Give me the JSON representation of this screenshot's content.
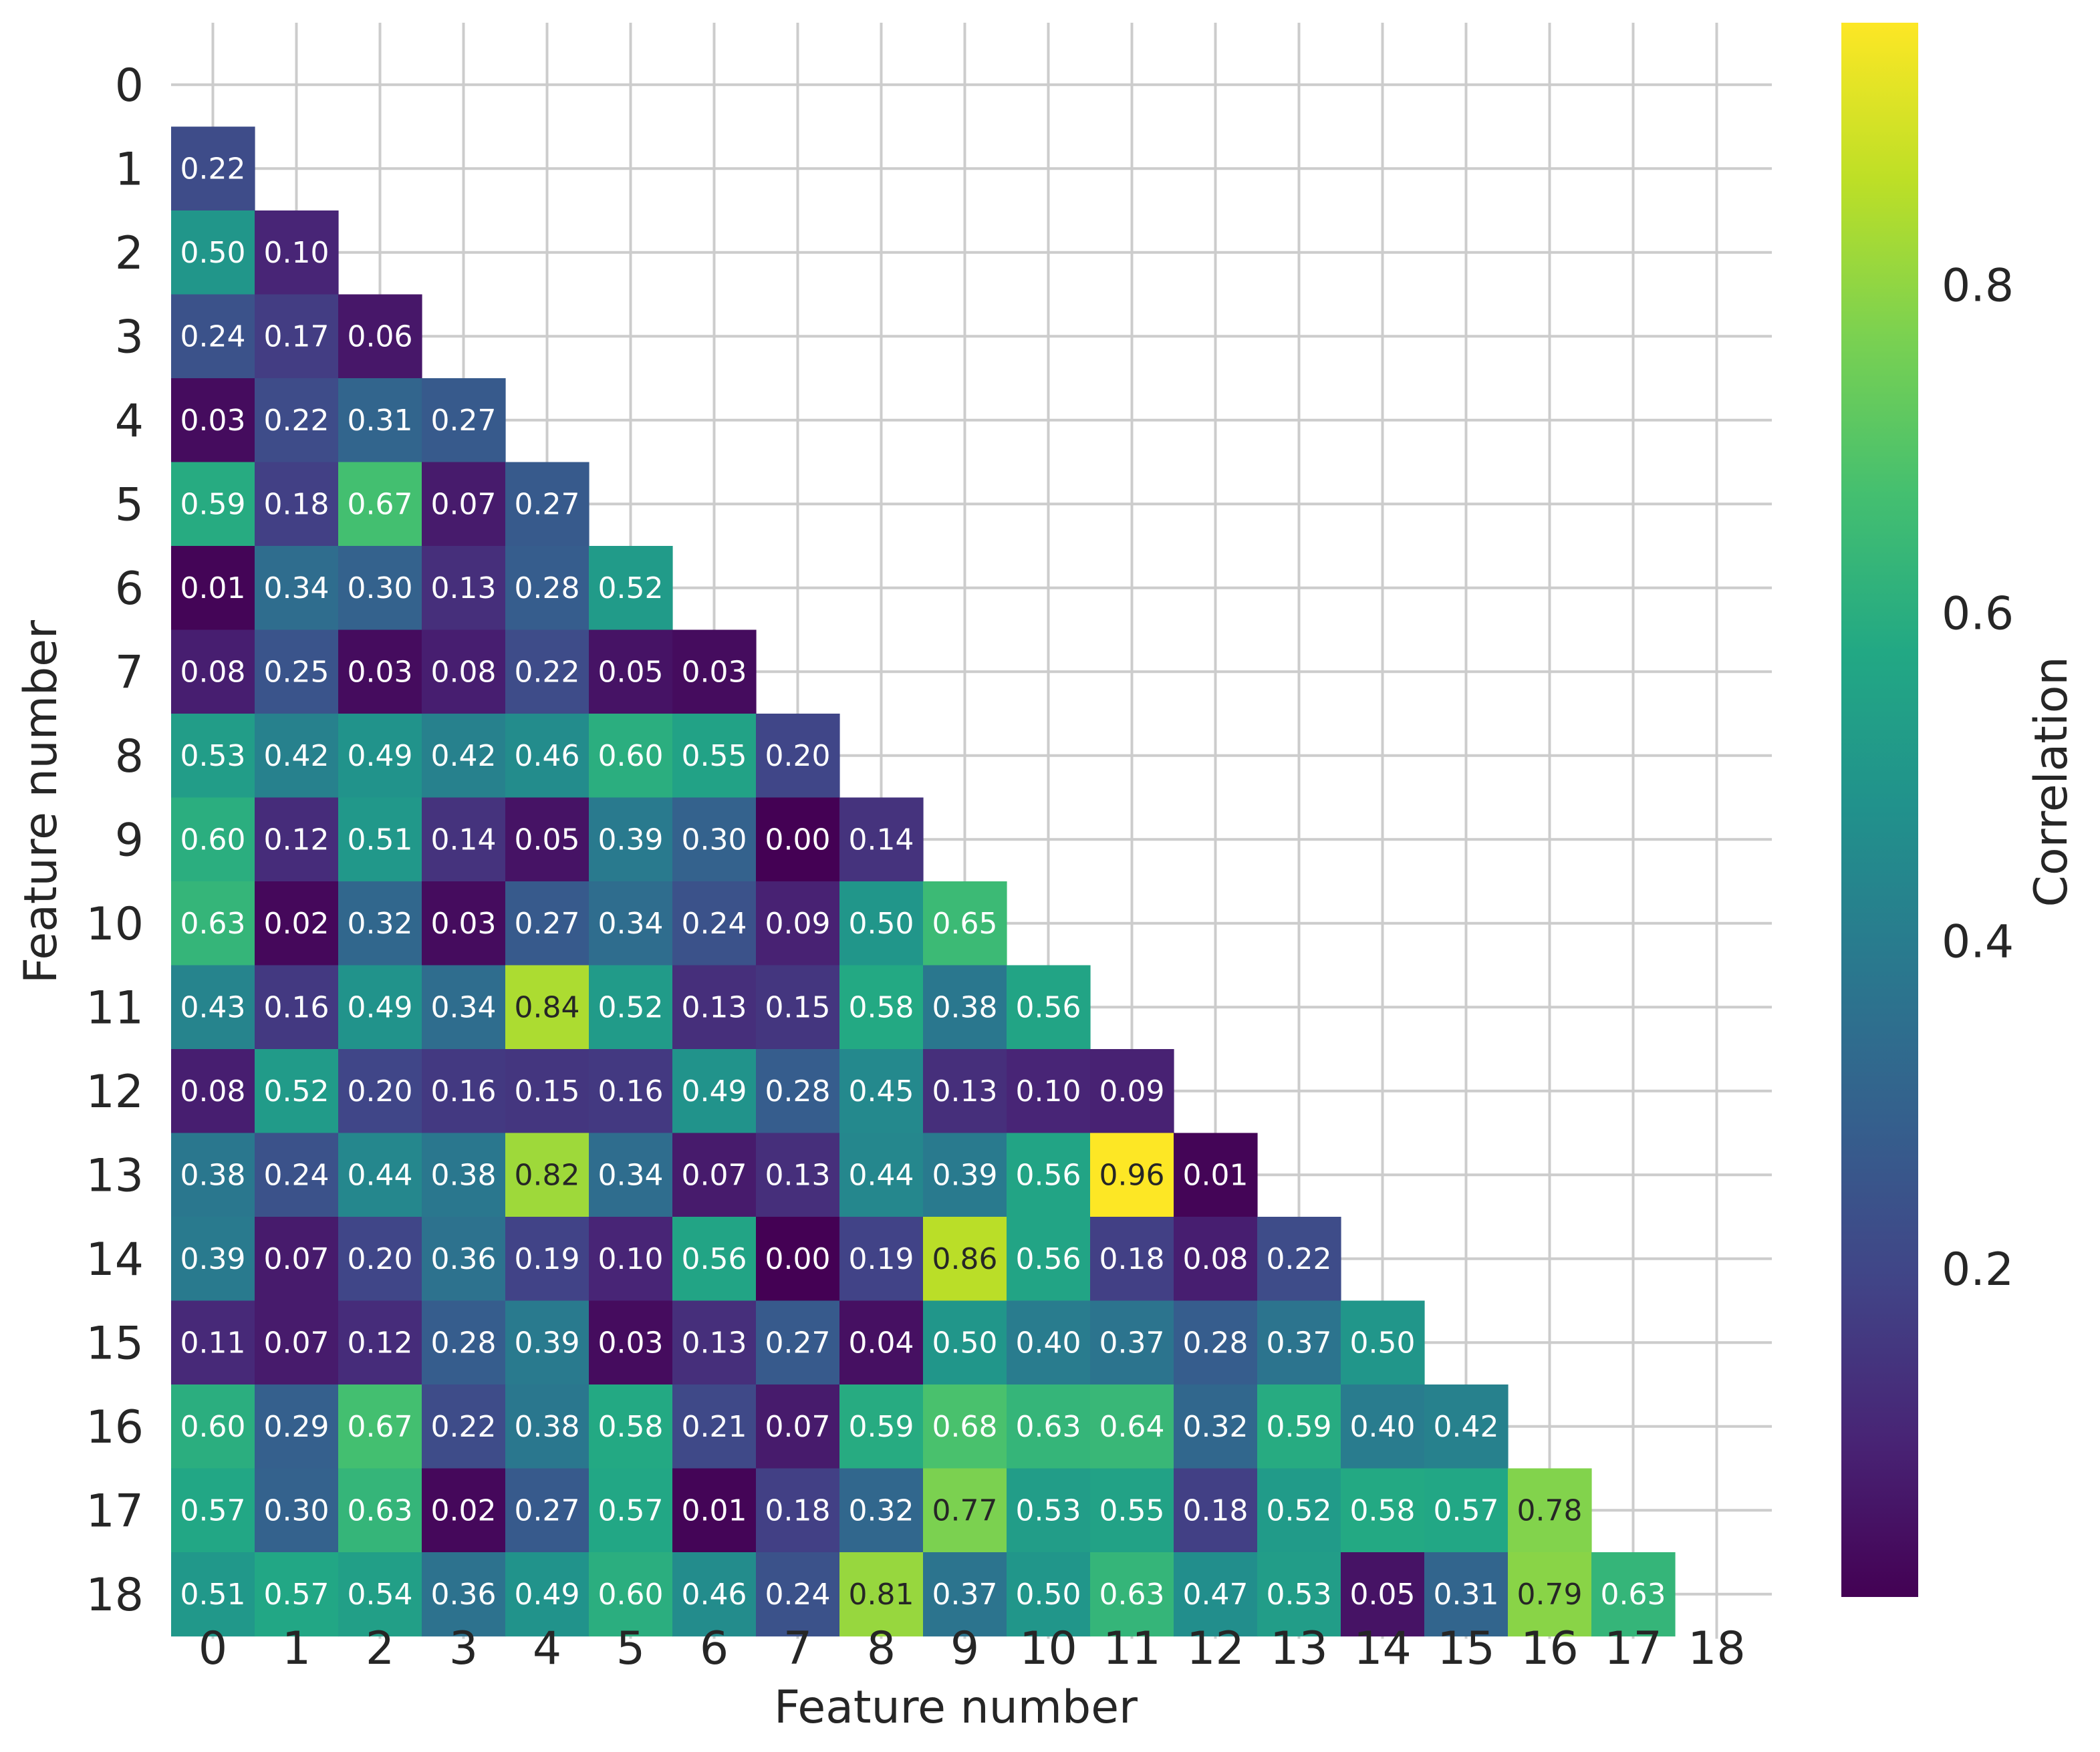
{
  "chart_data": {
    "type": "heatmap",
    "mask": "lower-triangle",
    "title": "",
    "xlabel": "Feature number",
    "ylabel": "Feature number",
    "x_tick_labels": [
      "0",
      "1",
      "2",
      "3",
      "4",
      "5",
      "6",
      "7",
      "8",
      "9",
      "10",
      "11",
      "12",
      "13",
      "14",
      "15",
      "16",
      "17",
      "18"
    ],
    "y_tick_labels": [
      "0",
      "1",
      "2",
      "3",
      "4",
      "5",
      "6",
      "7",
      "8",
      "9",
      "10",
      "11",
      "12",
      "13",
      "14",
      "15",
      "16",
      "17",
      "18"
    ],
    "grid": true,
    "colormap": "viridis",
    "colorbar": {
      "label": "Correlation",
      "vmin": 0.0,
      "vmax": 0.96,
      "ticks": [
        0.2,
        0.4,
        0.6,
        0.8
      ],
      "tick_labels": [
        "0.2",
        "0.4",
        "0.6",
        "0.8"
      ],
      "placement": "right"
    },
    "rows": [
      [],
      [
        0.22
      ],
      [
        0.5,
        0.1
      ],
      [
        0.24,
        0.17,
        0.06
      ],
      [
        0.03,
        0.22,
        0.31,
        0.27
      ],
      [
        0.59,
        0.18,
        0.67,
        0.07,
        0.27
      ],
      [
        0.01,
        0.34,
        0.3,
        0.13,
        0.28,
        0.52
      ],
      [
        0.08,
        0.25,
        0.03,
        0.08,
        0.22,
        0.05,
        0.03
      ],
      [
        0.53,
        0.42,
        0.49,
        0.42,
        0.46,
        0.6,
        0.55,
        0.2
      ],
      [
        0.6,
        0.12,
        0.51,
        0.14,
        0.05,
        0.39,
        0.3,
        0.0,
        0.14
      ],
      [
        0.63,
        0.02,
        0.32,
        0.03,
        0.27,
        0.34,
        0.24,
        0.09,
        0.5,
        0.65
      ],
      [
        0.43,
        0.16,
        0.49,
        0.34,
        0.84,
        0.52,
        0.13,
        0.15,
        0.58,
        0.38,
        0.56
      ],
      [
        0.08,
        0.52,
        0.2,
        0.16,
        0.15,
        0.16,
        0.49,
        0.28,
        0.45,
        0.13,
        0.1,
        0.09
      ],
      [
        0.38,
        0.24,
        0.44,
        0.38,
        0.82,
        0.34,
        0.07,
        0.13,
        0.44,
        0.39,
        0.56,
        0.96,
        0.01
      ],
      [
        0.39,
        0.07,
        0.2,
        0.36,
        0.19,
        0.1,
        0.56,
        0.0,
        0.19,
        0.86,
        0.56,
        0.18,
        0.08,
        0.22
      ],
      [
        0.11,
        0.07,
        0.12,
        0.28,
        0.39,
        0.03,
        0.13,
        0.27,
        0.04,
        0.5,
        0.4,
        0.37,
        0.28,
        0.37,
        0.5
      ],
      [
        0.6,
        0.29,
        0.67,
        0.22,
        0.38,
        0.58,
        0.21,
        0.07,
        0.59,
        0.68,
        0.63,
        0.64,
        0.32,
        0.59,
        0.4,
        0.42
      ],
      [
        0.57,
        0.3,
        0.63,
        0.02,
        0.27,
        0.57,
        0.01,
        0.18,
        0.32,
        0.77,
        0.53,
        0.55,
        0.18,
        0.52,
        0.58,
        0.57,
        0.78
      ],
      [
        0.51,
        0.57,
        0.54,
        0.36,
        0.49,
        0.6,
        0.46,
        0.24,
        0.81,
        0.37,
        0.5,
        0.63,
        0.47,
        0.53,
        0.05,
        0.31,
        0.79,
        0.63
      ]
    ]
  }
}
